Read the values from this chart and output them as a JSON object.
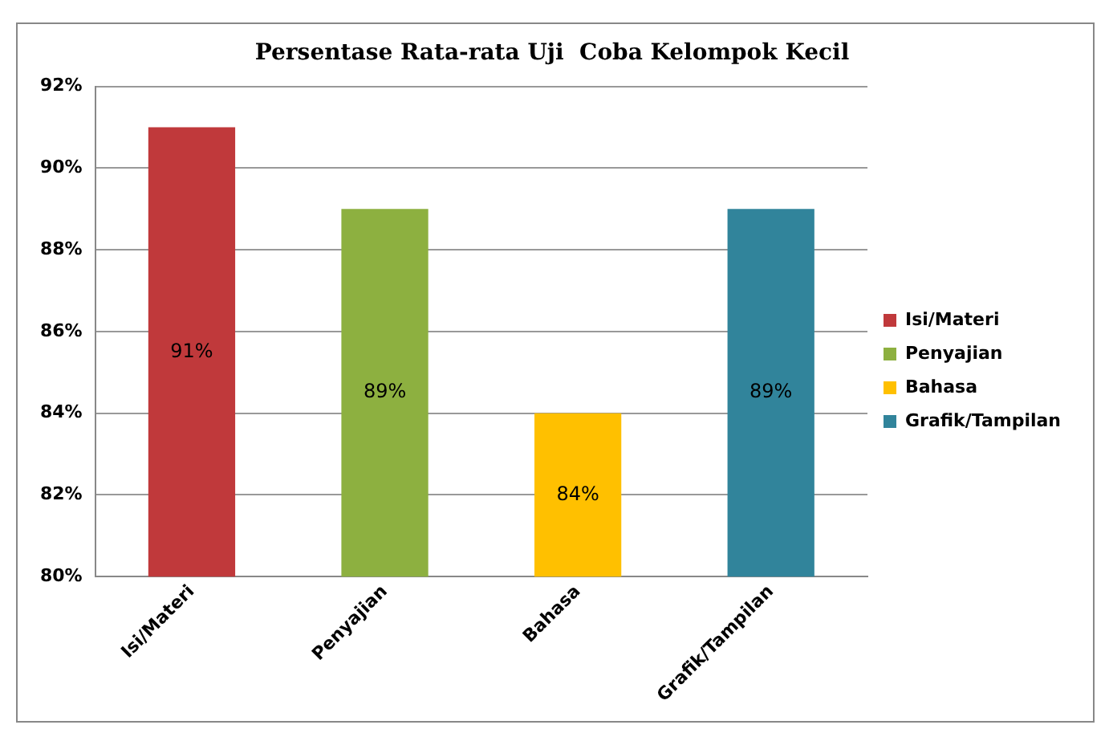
{
  "chart_data": {
    "type": "bar",
    "title": "Persentase Rata-rata Uji  Coba Kelompok Kecil",
    "categories": [
      "Isi/Materi",
      "Penyajian",
      "Bahasa",
      "Grafik/Tampilan"
    ],
    "series": [
      {
        "name": "Isi/Materi",
        "color": "#c0393b",
        "values": [
          91,
          null,
          null,
          null
        ],
        "value_labels": [
          "91%",
          null,
          null,
          null
        ]
      },
      {
        "name": "Penyajian",
        "color": "#8db040",
        "values": [
          null,
          89,
          null,
          null
        ],
        "value_labels": [
          null,
          "89%",
          null,
          null
        ]
      },
      {
        "name": "Bahasa",
        "color": "#ffc000",
        "values": [
          null,
          null,
          84,
          null
        ],
        "value_labels": [
          null,
          null,
          "84%",
          null
        ]
      },
      {
        "name": "Grafik/Tampilan",
        "color": "#31849b",
        "values": [
          null,
          null,
          null,
          89
        ],
        "value_labels": [
          null,
          null,
          null,
          "89%"
        ]
      }
    ],
    "stacked": true,
    "ylim": [
      80,
      92
    ],
    "yticks": [
      {
        "value": 80,
        "label": "80%"
      },
      {
        "value": 82,
        "label": "82%"
      },
      {
        "value": 84,
        "label": "84%"
      },
      {
        "value": 86,
        "label": "86%"
      },
      {
        "value": 88,
        "label": "88%"
      },
      {
        "value": 90,
        "label": "90%"
      },
      {
        "value": 92,
        "label": "92%"
      }
    ],
    "grid": "y",
    "legend": "right"
  }
}
